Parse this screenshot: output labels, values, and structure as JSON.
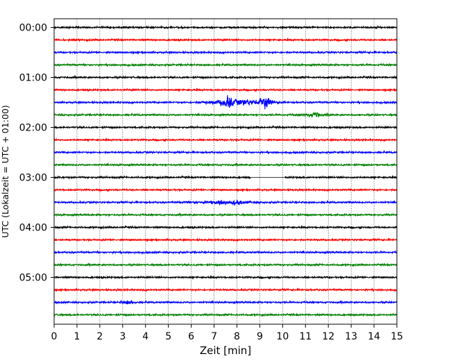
{
  "chart_data": {
    "type": "line",
    "title": "",
    "xlabel": "Zeit  [min]",
    "ylabel": "UTC (Lokalzeit = UTC + 01:00)",
    "xlim": [
      0,
      15
    ],
    "x_ticks": [
      "0",
      "1",
      "2",
      "3",
      "4",
      "5",
      "6",
      "7",
      "8",
      "9",
      "10",
      "11",
      "12",
      "13",
      "14",
      "15"
    ],
    "y_tick_labels": [
      "00:00",
      "01:00",
      "02:00",
      "03:00",
      "04:00",
      "05:00"
    ],
    "trace_interval_min": 15,
    "trace_count": 24,
    "trace_colors": [
      "#000000",
      "#ff0000",
      "#0000ff",
      "#008000"
    ],
    "grid_x": true,
    "legend": "none",
    "events": [
      {
        "trace": 6,
        "start_min": 6.2,
        "end_min": 10.2,
        "peaks_min": [
          7.6,
          9.2
        ],
        "relative_amplitude": 1.0
      },
      {
        "trace": 7,
        "start_min": 10.4,
        "end_min": 12.2,
        "peaks_min": [
          11.4
        ],
        "relative_amplitude": 0.35
      },
      {
        "trace": 14,
        "start_min": 5.3,
        "end_min": 9.3,
        "peaks_min": [
          7.3,
          8.0
        ],
        "relative_amplitude": 0.35
      },
      {
        "trace": 22,
        "start_min": 2.9,
        "end_min": 3.6,
        "peaks_min": [
          3.2
        ],
        "relative_amplitude": 0.25
      }
    ],
    "gaps": [
      {
        "trace": 12,
        "start_min": 8.6,
        "end_min": 10.1
      }
    ]
  }
}
